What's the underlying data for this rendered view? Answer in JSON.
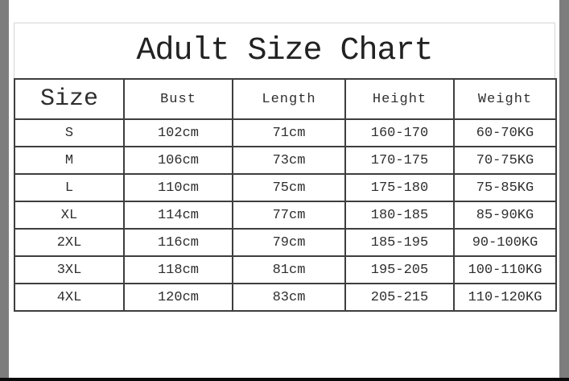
{
  "page": {
    "title": "Adult Size Chart"
  },
  "chart_data": {
    "type": "table",
    "title": "Adult Size Chart",
    "columns": [
      "Size",
      "Bust",
      "Length",
      "Height",
      "Weight"
    ],
    "rows": [
      [
        "S",
        "102cm",
        "71cm",
        "160-170",
        "60-70KG"
      ],
      [
        "M",
        "106cm",
        "73cm",
        "170-175",
        "70-75KG"
      ],
      [
        "L",
        "110cm",
        "75cm",
        "175-180",
        "75-85KG"
      ],
      [
        "XL",
        "114cm",
        "77cm",
        "180-185",
        "85-90KG"
      ],
      [
        "2XL",
        "116cm",
        "79cm",
        "185-195",
        "90-100KG"
      ],
      [
        "3XL",
        "118cm",
        "81cm",
        "195-205",
        "100-110KG"
      ],
      [
        "4XL",
        "120cm",
        "83cm",
        "205-215",
        "110-120KG"
      ]
    ],
    "units": {
      "bust": "cm",
      "length": "cm",
      "height": "cm range",
      "weight": "KG range"
    },
    "layout_hints": {
      "grid": true,
      "header_row": true,
      "title_position": "top-center"
    }
  },
  "colors": {
    "background": "#ffffff",
    "grid_line": "#3e3e3e",
    "title_box_border": "#d6d6d6",
    "edge_strip": "#7d7d7d",
    "letterbox_bar": "#0a0a0a",
    "text": "#2e2e2e"
  }
}
